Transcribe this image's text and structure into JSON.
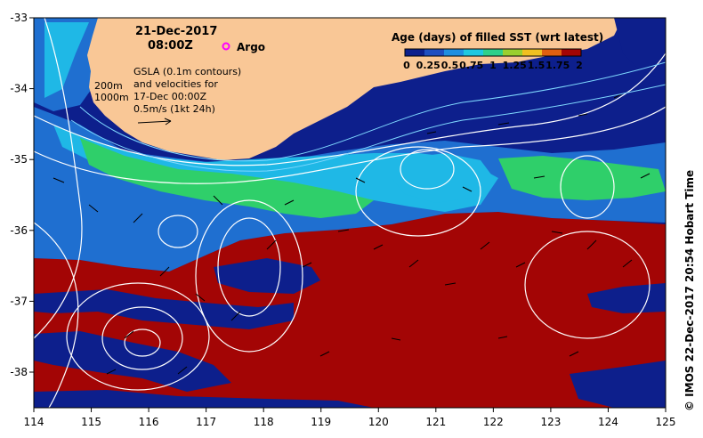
{
  "map": {
    "date": "21-Dec-2017",
    "time": "08:00Z",
    "argo_label": "Argo",
    "gsla_note": [
      "GSLA (0.1m contours)",
      "and velocities for",
      "17-Dec 00:00Z",
      "0.5m/s (1kt 24h)"
    ],
    "depth_labels": [
      "200m",
      "1000m"
    ],
    "credit": "© IMOS 22-Dec-2017 20:54 Hobart Time",
    "colorbar": {
      "title": "Age (days) of filled SST (wrt latest)",
      "ticks": [
        "0",
        "0.25",
        "0.5",
        "0.75",
        "1",
        "1.25",
        "1.5",
        "1.75",
        "2"
      ]
    },
    "axes": {
      "lon_ticks": [
        "114",
        "115",
        "116",
        "117",
        "118",
        "119",
        "120",
        "121",
        "122",
        "123",
        "124",
        "125"
      ],
      "lat_ticks": [
        "-33",
        "-34",
        "-35",
        "-36",
        "-37",
        "-38"
      ]
    },
    "colors": {
      "land": "#f9c796",
      "age_0": "#0d1f8c",
      "age_0_5": "#1f6fd0",
      "age_1": "#1fb8e6",
      "age_1_25": "#2fcf6a",
      "age_2": "#a30505",
      "contour": "#ffffff"
    }
  }
}
